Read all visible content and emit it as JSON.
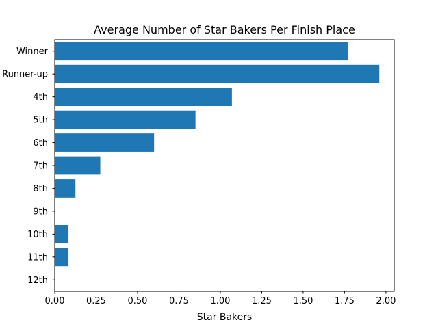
{
  "chart_data": {
    "type": "bar",
    "orientation": "horizontal",
    "title": "Average Number of Star Bakers Per Finish Place",
    "xlabel": "Star Bakers",
    "ylabel": "",
    "categories": [
      "Winner",
      "Runner-up",
      "4th",
      "5th",
      "6th",
      "7th",
      "8th",
      "9th",
      "10th",
      "11th",
      "12th"
    ],
    "values": [
      1.77,
      1.96,
      1.07,
      0.85,
      0.6,
      0.275,
      0.125,
      0.0,
      0.083,
      0.083,
      0.0
    ],
    "xlim": [
      0,
      2.05
    ],
    "xticks": [
      "0.00",
      "0.25",
      "0.50",
      "0.75",
      "1.00",
      "1.25",
      "1.50",
      "1.75",
      "2.00"
    ],
    "grid": false,
    "legend": "none",
    "bar_color": "#1f77b4"
  }
}
